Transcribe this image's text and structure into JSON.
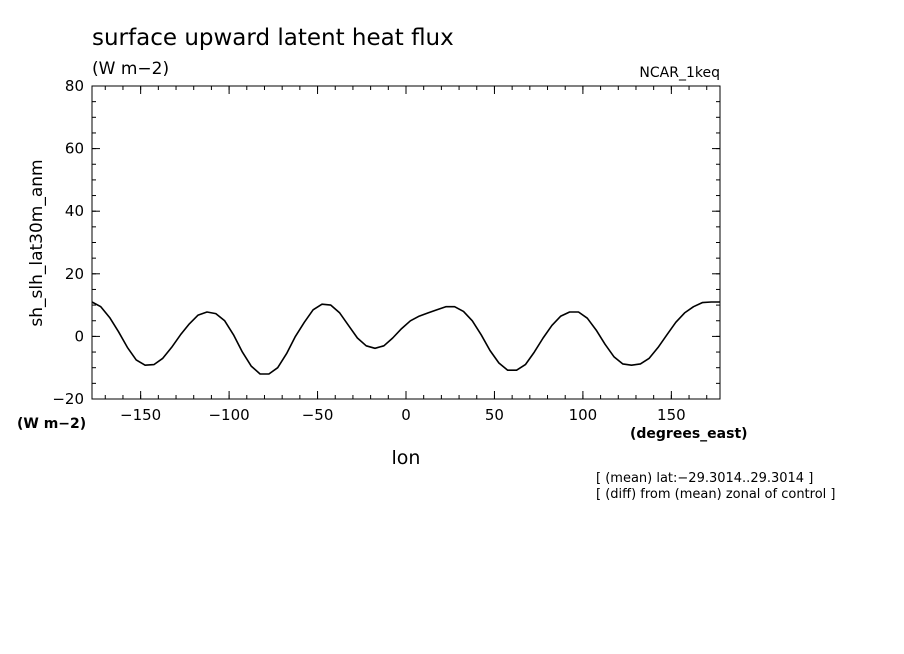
{
  "chart_data": {
    "type": "line",
    "title": "surface upward latent heat flux",
    "units": "(W m−2)",
    "run_label": "NCAR_1keq",
    "xlabel": "lon",
    "x_units": "(degrees_east)",
    "ylabel": "sh_slh_lat30m_anm",
    "y_units": "(W m−2)",
    "xlim": [
      -177.5,
      177.5
    ],
    "ylim": [
      -20,
      80
    ],
    "x_ticks": [
      -150,
      -100,
      -50,
      0,
      50,
      100,
      150
    ],
    "x_tick_labels": [
      "−150",
      "−100",
      "−50",
      "0",
      "50",
      "100",
      "150"
    ],
    "y_ticks": [
      -20,
      0,
      20,
      40,
      60,
      80
    ],
    "y_tick_labels": [
      "−20",
      "0",
      "20",
      "40",
      "60",
      "80"
    ],
    "x_minor_step": 10,
    "y_minor_step": 5,
    "grid": false,
    "notes": [
      "[ (mean) lat:−29.3014..29.3014 ]",
      "[ (diff) from (mean) zonal of control ]"
    ],
    "series": [
      {
        "x": [
          -177.5,
          -172.5,
          -167.5,
          -162.5,
          -157.5,
          -152.5,
          -147.5,
          -142.5,
          -137.5,
          -132.5,
          -127.5,
          -122.5,
          -117.5,
          -112.5,
          -107.5,
          -102.5,
          -97.5,
          -92.5,
          -87.5,
          -82.5,
          -77.5,
          -72.5,
          -67.5,
          -62.5,
          -57.5,
          -52.5,
          -47.5,
          -42.5,
          -37.5,
          -32.5,
          -27.5,
          -22.5,
          -17.5,
          -12.5,
          -7.5,
          -2.5,
          2.5,
          7.5,
          12.5,
          17.5,
          22.5,
          27.5,
          32.5,
          37.5,
          42.5,
          47.5,
          52.5,
          57.5,
          62.5,
          67.5,
          72.5,
          77.5,
          82.5,
          87.5,
          92.5,
          97.5,
          102.5,
          107.5,
          112.5,
          117.5,
          122.5,
          127.5,
          132.5,
          137.5,
          142.5,
          147.5,
          152.5,
          157.5,
          162.5,
          167.5,
          172.5,
          177.5
        ],
        "y": [
          11,
          9.5,
          6,
          1.5,
          -3.5,
          -7.5,
          -9.2,
          -9,
          -7,
          -3.5,
          0.5,
          4,
          6.8,
          7.8,
          7.3,
          5,
          0.5,
          -5,
          -9.5,
          -12,
          -12,
          -10,
          -5.5,
          0,
          4.5,
          8.5,
          10.3,
          10,
          7.5,
          3.5,
          -0.5,
          -3,
          -3.8,
          -3,
          -0.5,
          2.5,
          5,
          6.5,
          7.5,
          8.5,
          9.5,
          9.5,
          8,
          5,
          0.5,
          -4.5,
          -8.5,
          -10.8,
          -10.8,
          -9,
          -5,
          -0.5,
          3.5,
          6.5,
          7.8,
          7.8,
          5.8,
          2,
          -2.5,
          -6.5,
          -8.8,
          -9.2,
          -8.8,
          -7,
          -3.5,
          0.5,
          4.5,
          7.5,
          9.5,
          10.8,
          11,
          11
        ]
      }
    ]
  }
}
